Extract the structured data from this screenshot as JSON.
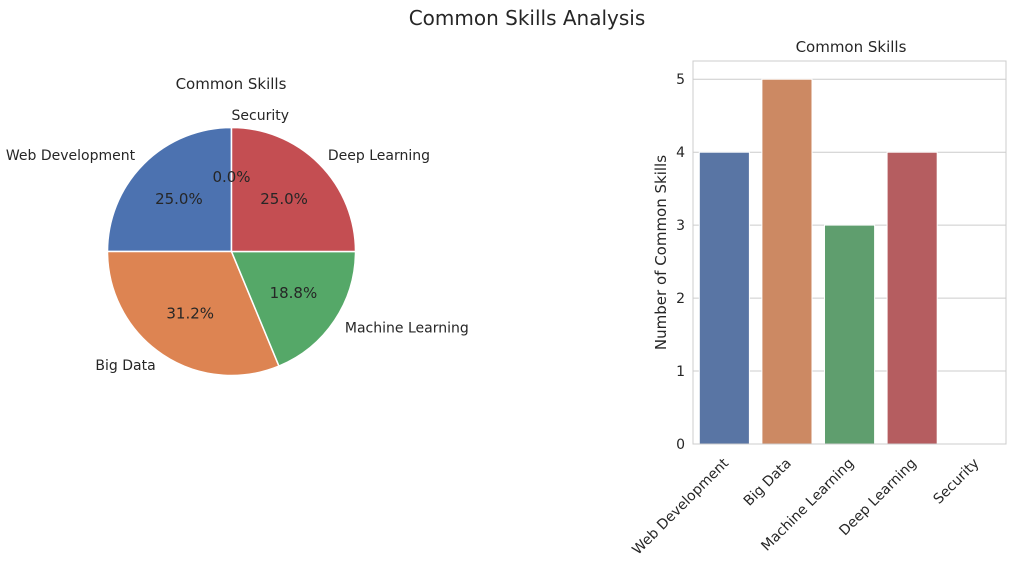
{
  "figure": {
    "title": "Common Skills Analysis"
  },
  "chart_data": [
    {
      "type": "pie",
      "title": "Common Skills",
      "categories": [
        "Web Development",
        "Big Data",
        "Machine Learning",
        "Deep Learning",
        "Security"
      ],
      "values": [
        4,
        5,
        3,
        4,
        0
      ],
      "percent_labels": [
        "25.0%",
        "31.2%",
        "18.8%",
        "25.0%",
        "0.0%"
      ],
      "colors": [
        "#4c72b0",
        "#dd8452",
        "#55a868",
        "#c44e52",
        "#8172b3"
      ],
      "start_angle_deg": 90,
      "direction": "counterclockwise"
    },
    {
      "type": "bar",
      "title": "Common Skills",
      "categories": [
        "Web Development",
        "Big Data",
        "Machine Learning",
        "Deep Learning",
        "Security"
      ],
      "values": [
        4,
        5,
        3,
        4,
        0
      ],
      "colors": [
        "#5975a4",
        "#cc8963",
        "#5f9e6e",
        "#b55d60",
        "#857aab"
      ],
      "xlabel": "",
      "ylabel": "Number of Common Skills",
      "ylim": [
        0,
        5.25
      ],
      "yticks": [
        "0",
        "1",
        "2",
        "3",
        "4",
        "5"
      ],
      "grid": "horizontal",
      "xtick_rotation_deg": 45
    }
  ]
}
